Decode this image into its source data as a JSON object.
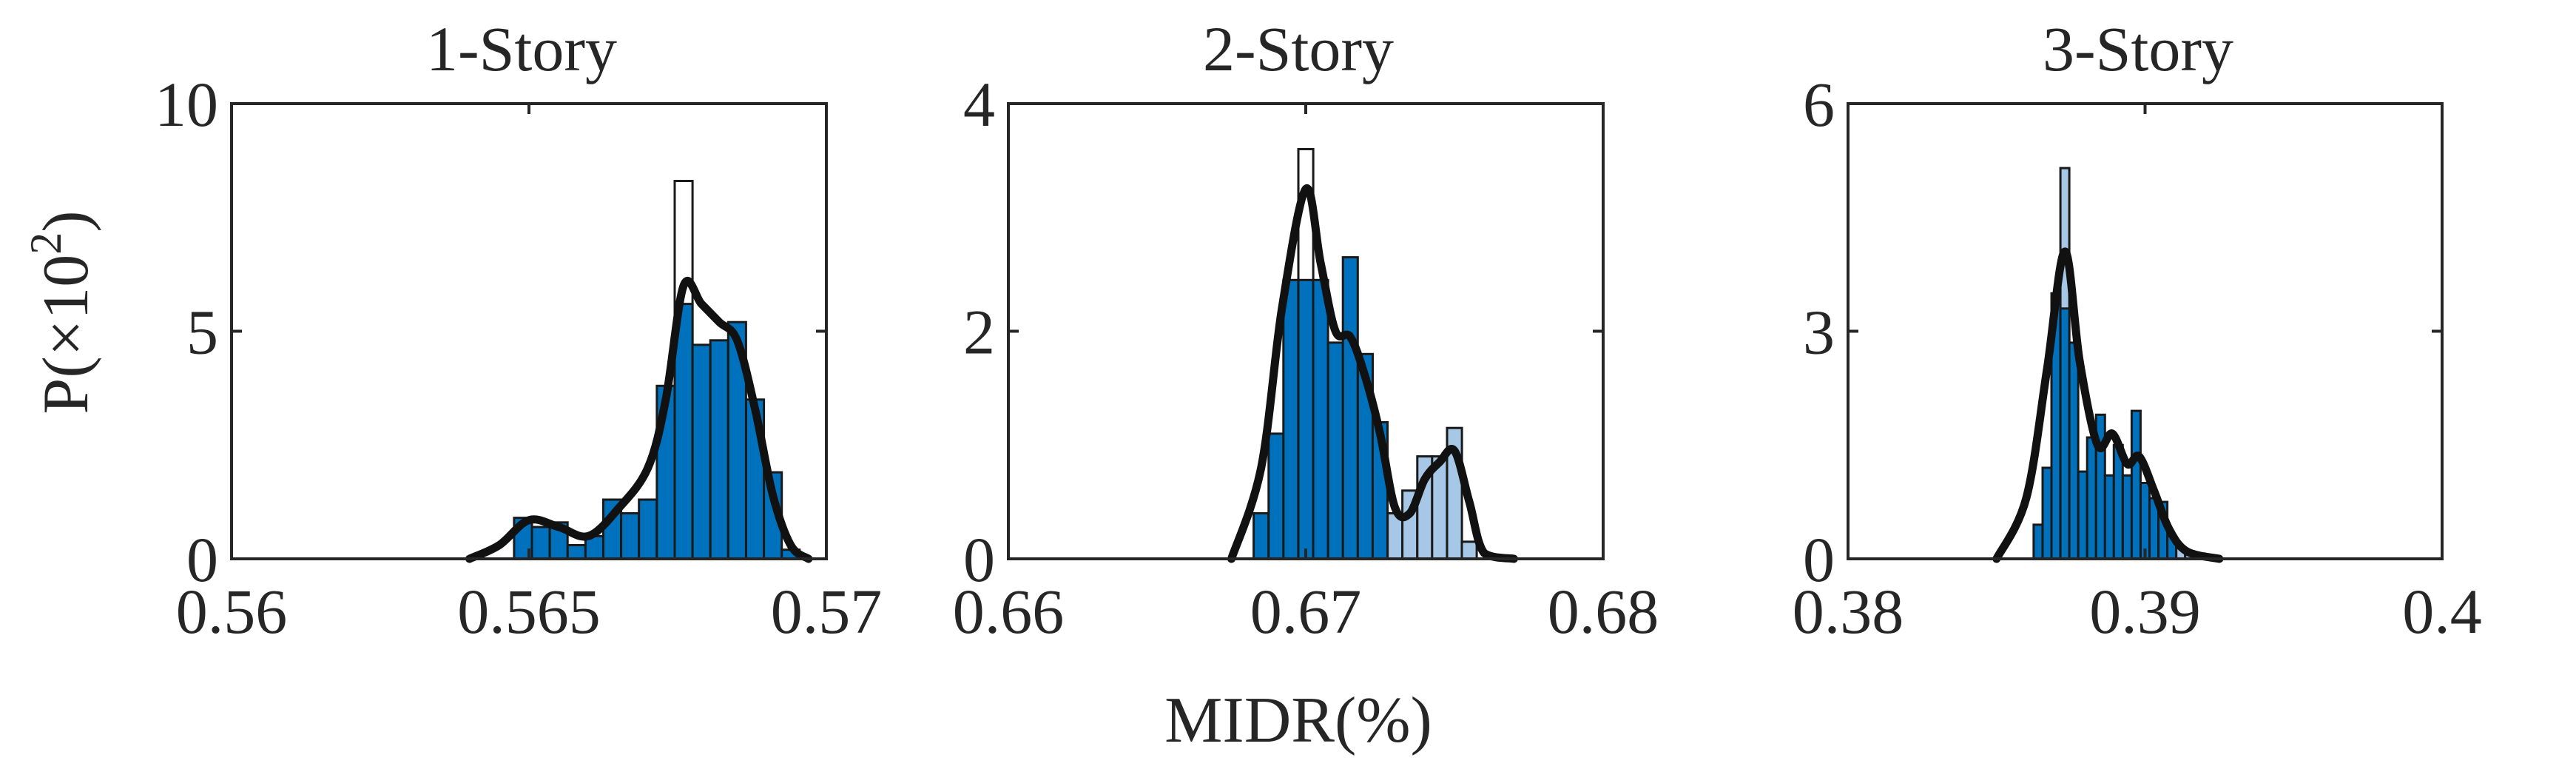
{
  "chart_data": [
    {
      "type": "bar",
      "title": "1-Story",
      "ylabel": "P(×10²)",
      "xlim": [
        0.56,
        0.57
      ],
      "ylim": [
        0,
        10
      ],
      "xticks": [
        "0.56",
        "0.565",
        "0.57"
      ],
      "yticks": [
        "0",
        "5",
        "10"
      ],
      "bin_width": 0.0003,
      "bars": [
        {
          "x": 0.5649,
          "v": 0.9,
          "style": "dark"
        },
        {
          "x": 0.5652,
          "v": 0.7,
          "style": "dark"
        },
        {
          "x": 0.5655,
          "v": 0.8,
          "style": "dark"
        },
        {
          "x": 0.5658,
          "v": 0.3,
          "style": "dark"
        },
        {
          "x": 0.5661,
          "v": 0.5,
          "style": "dark"
        },
        {
          "x": 0.5664,
          "v": 1.3,
          "style": "dark"
        },
        {
          "x": 0.5667,
          "v": 1.0,
          "style": "dark"
        },
        {
          "x": 0.567,
          "v": 1.3,
          "style": "dark"
        },
        {
          "x": 0.5673,
          "v": 3.8,
          "style": "dark"
        },
        {
          "x": 0.5676,
          "v": 8.3,
          "style": "empty"
        },
        {
          "x": 0.5676,
          "v": 5.6,
          "style": "dark"
        },
        {
          "x": 0.5679,
          "v": 4.7,
          "style": "dark"
        },
        {
          "x": 0.5682,
          "v": 4.8,
          "style": "dark"
        },
        {
          "x": 0.5685,
          "v": 5.2,
          "style": "dark"
        },
        {
          "x": 0.5688,
          "v": 3.5,
          "style": "dark"
        },
        {
          "x": 0.5691,
          "v": 1.9,
          "style": "dark"
        },
        {
          "x": 0.5694,
          "v": 0.2,
          "style": "dark"
        }
      ],
      "kde": [
        [
          0.564,
          0.0
        ],
        [
          0.5645,
          0.3
        ],
        [
          0.565,
          0.85
        ],
        [
          0.5655,
          0.7
        ],
        [
          0.566,
          0.5
        ],
        [
          0.5665,
          1.1
        ],
        [
          0.567,
          2.0
        ],
        [
          0.5673,
          3.5
        ],
        [
          0.5676,
          6.0
        ],
        [
          0.5679,
          5.6
        ],
        [
          0.5682,
          5.2
        ],
        [
          0.5685,
          4.8
        ],
        [
          0.5688,
          3.3
        ],
        [
          0.5691,
          1.4
        ],
        [
          0.5694,
          0.3
        ],
        [
          0.5697,
          0.0
        ]
      ]
    },
    {
      "type": "bar",
      "title": "2-Story",
      "xlabel": "MIDR(%)",
      "xlim": [
        0.66,
        0.68
      ],
      "ylim": [
        0,
        4
      ],
      "xticks": [
        "0.66",
        "0.67",
        "0.68"
      ],
      "yticks": [
        "0",
        "2",
        "4"
      ],
      "bin_width": 0.0005,
      "bars": [
        {
          "x": 0.6685,
          "v": 0.4,
          "style": "dark"
        },
        {
          "x": 0.669,
          "v": 1.1,
          "style": "dark"
        },
        {
          "x": 0.6695,
          "v": 2.45,
          "style": "dark"
        },
        {
          "x": 0.67,
          "v": 3.6,
          "style": "empty"
        },
        {
          "x": 0.67,
          "v": 2.45,
          "style": "dark"
        },
        {
          "x": 0.6705,
          "v": 2.45,
          "style": "dark"
        },
        {
          "x": 0.671,
          "v": 1.9,
          "style": "dark"
        },
        {
          "x": 0.6715,
          "v": 2.65,
          "style": "dark"
        },
        {
          "x": 0.672,
          "v": 1.8,
          "style": "dark"
        },
        {
          "x": 0.6725,
          "v": 1.2,
          "style": "dark"
        },
        {
          "x": 0.673,
          "v": 0.4,
          "style": "light"
        },
        {
          "x": 0.6735,
          "v": 0.6,
          "style": "light"
        },
        {
          "x": 0.674,
          "v": 0.9,
          "style": "light"
        },
        {
          "x": 0.6745,
          "v": 0.9,
          "style": "light"
        },
        {
          "x": 0.675,
          "v": 1.15,
          "style": "light"
        },
        {
          "x": 0.6755,
          "v": 0.15,
          "style": "light"
        }
      ],
      "kde": [
        [
          0.6675,
          0.0
        ],
        [
          0.6685,
          0.8
        ],
        [
          0.6692,
          2.2
        ],
        [
          0.67,
          3.25
        ],
        [
          0.6705,
          2.6
        ],
        [
          0.671,
          2.0
        ],
        [
          0.6715,
          1.95
        ],
        [
          0.672,
          1.6
        ],
        [
          0.6725,
          1.1
        ],
        [
          0.673,
          0.45
        ],
        [
          0.6735,
          0.4
        ],
        [
          0.674,
          0.7
        ],
        [
          0.6745,
          0.85
        ],
        [
          0.675,
          0.95
        ],
        [
          0.6755,
          0.5
        ],
        [
          0.676,
          0.05
        ],
        [
          0.677,
          0.0
        ]
      ]
    },
    {
      "type": "bar",
      "title": "3-Story",
      "xlim": [
        0.38,
        0.4
      ],
      "ylim": [
        0,
        6
      ],
      "xticks": [
        "0.38",
        "0.39",
        "0.4"
      ],
      "yticks": [
        "0",
        "3",
        "6"
      ],
      "bin_width": 0.0003,
      "bars": [
        {
          "x": 0.3864,
          "v": 0.45,
          "style": "dark"
        },
        {
          "x": 0.3867,
          "v": 1.2,
          "style": "dark"
        },
        {
          "x": 0.387,
          "v": 3.5,
          "style": "dark"
        },
        {
          "x": 0.3873,
          "v": 5.15,
          "style": "light"
        },
        {
          "x": 0.3873,
          "v": 3.3,
          "style": "dark"
        },
        {
          "x": 0.3876,
          "v": 2.85,
          "style": "dark"
        },
        {
          "x": 0.3879,
          "v": 1.15,
          "style": "dark"
        },
        {
          "x": 0.3882,
          "v": 1.6,
          "style": "dark"
        },
        {
          "x": 0.3885,
          "v": 1.9,
          "style": "dark"
        },
        {
          "x": 0.3888,
          "v": 1.1,
          "style": "dark"
        },
        {
          "x": 0.3891,
          "v": 1.5,
          "style": "dark"
        },
        {
          "x": 0.3894,
          "v": 1.1,
          "style": "dark"
        },
        {
          "x": 0.3897,
          "v": 1.95,
          "style": "dark"
        },
        {
          "x": 0.39,
          "v": 1.0,
          "style": "dark"
        },
        {
          "x": 0.3903,
          "v": 0.8,
          "style": "dark"
        },
        {
          "x": 0.3906,
          "v": 0.75,
          "style": "dark"
        },
        {
          "x": 0.3909,
          "v": 0.3,
          "style": "dark"
        },
        {
          "x": 0.3912,
          "v": 0.15,
          "style": "light"
        },
        {
          "x": 0.3915,
          "v": 0.1,
          "style": "light"
        }
      ],
      "kde": [
        [
          0.385,
          0.0
        ],
        [
          0.386,
          0.8
        ],
        [
          0.3867,
          2.5
        ],
        [
          0.3873,
          4.05
        ],
        [
          0.3878,
          2.6
        ],
        [
          0.3884,
          1.5
        ],
        [
          0.3889,
          1.65
        ],
        [
          0.3894,
          1.25
        ],
        [
          0.3898,
          1.35
        ],
        [
          0.3903,
          0.9
        ],
        [
          0.3908,
          0.4
        ],
        [
          0.3914,
          0.1
        ],
        [
          0.3925,
          0.0
        ]
      ]
    }
  ],
  "colors": {
    "bar_dark": "#0072bd",
    "bar_light": "#a6c8e6",
    "bar_empty": "#ffffff",
    "kde_line": "#111111",
    "axes": "#262626"
  }
}
